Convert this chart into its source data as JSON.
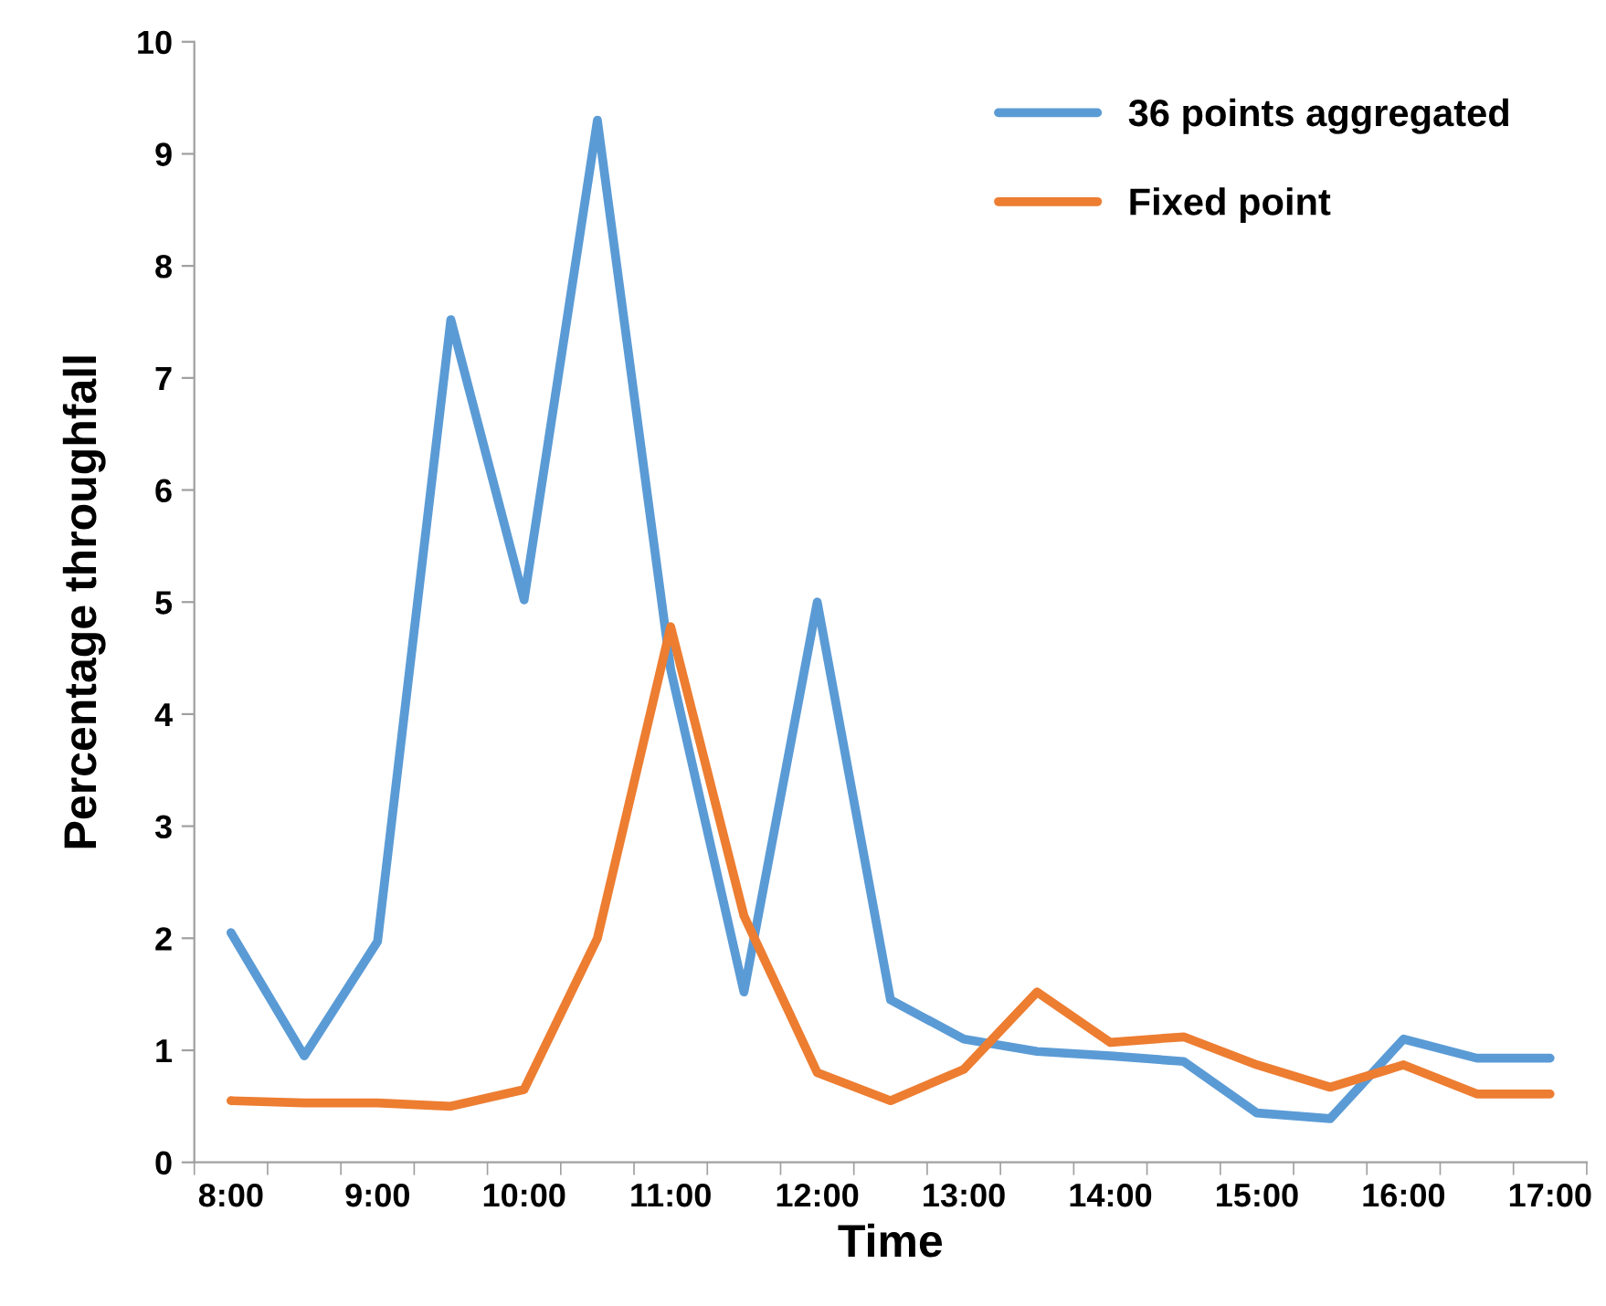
{
  "chart_data": {
    "type": "line",
    "xlabel": "Time",
    "ylabel": "Percentage throughfall",
    "categories": [
      "8:00",
      null,
      "9:00",
      null,
      "10:00",
      null,
      "11:00",
      null,
      "12:00",
      null,
      "13:00",
      null,
      "14:00",
      null,
      "15:00",
      null,
      "16:00",
      null,
      "17:00"
    ],
    "series": [
      {
        "name": "36 points aggregated",
        "color": "#5b9bd5",
        "values": [
          2.05,
          0.95,
          1.97,
          7.52,
          5.02,
          9.3,
          4.4,
          1.52,
          5.0,
          1.45,
          1.1,
          0.99,
          0.95,
          0.9,
          0.44,
          0.39,
          1.1,
          0.93,
          0.93
        ]
      },
      {
        "name": "Fixed point",
        "color": "#ed7d31",
        "values": [
          0.55,
          0.53,
          0.53,
          0.5,
          0.65,
          2.0,
          4.78,
          2.2,
          0.8,
          0.55,
          0.83,
          1.52,
          1.07,
          1.12,
          0.87,
          0.67,
          0.87,
          0.61,
          0.61
        ]
      }
    ],
    "ylim": [
      0,
      10
    ],
    "yticks": [
      0,
      1,
      2,
      3,
      4,
      5,
      6,
      7,
      8,
      9,
      10
    ],
    "grid": false,
    "legend": "top right",
    "marker": "none",
    "line_style": "solid"
  }
}
